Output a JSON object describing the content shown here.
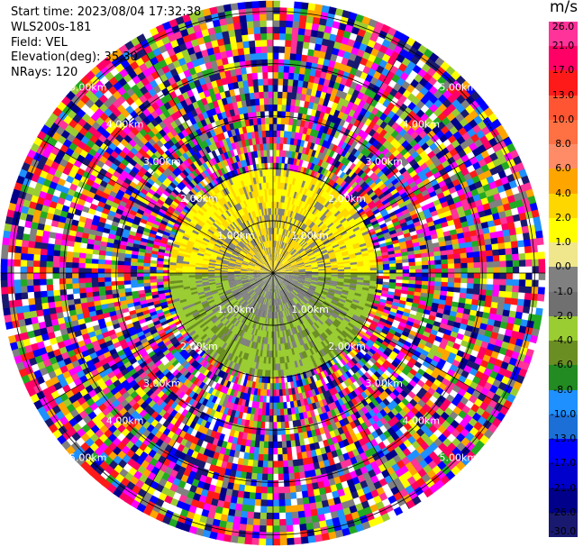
{
  "info": {
    "start_time": "Start time: 2023/08/04 17:32:38",
    "instrument": "WLS200s-181",
    "field": "Field: VEL",
    "elevation": "Elevation(deg): 35.30",
    "nrays": "NRays: 120"
  },
  "chart_data": {
    "type": "heatmap",
    "subtype": "polar-ppi",
    "field": "VEL",
    "unit": "m/s",
    "nrays": 120,
    "elevation_deg": 35.3,
    "range_rings_km": [
      "1.00km",
      "2.00km",
      "3.00km",
      "4.00km",
      "5.00km"
    ],
    "max_range_km": 5.2,
    "colorbar": {
      "title": "m/s",
      "levels": [
        "26.0",
        "21.0",
        "17.0",
        "13.0",
        "10.0",
        "8.0",
        "6.0",
        "4.0",
        "2.0",
        "1.0",
        "0.0",
        "-1.0",
        "-2.0",
        "-4.0",
        "-6.0",
        "-8.0",
        "-10.0",
        "-13.0",
        "-17.0",
        "-21.0",
        "-26.0",
        "-30.0"
      ],
      "colors": [
        "#ff3399",
        "#ff0066",
        "#ff1a1a",
        "#ff5533",
        "#ff7043",
        "#ff8c66",
        "#ffa500",
        "#ffd700",
        "#ffff00",
        "#f0e68c",
        "#808080",
        "#707070",
        "#9acd32",
        "#6b8e23",
        "#228b22",
        "#1e90ff",
        "#1c6fd6",
        "#0000ff",
        "#0000cd",
        "#00008b",
        "#191970"
      ]
    },
    "regions": [
      {
        "range_km": [
          0,
          1.55
        ],
        "azimuth_deg": [
          -90,
          90
        ],
        "values": "1.0 to 4.0",
        "color_key": "yellow"
      },
      {
        "range_km": [
          0,
          1.55
        ],
        "azimuth_deg": [
          90,
          270
        ],
        "values": "-2.0 to 0.0",
        "color_key": "gray-green"
      },
      {
        "range_km": [
          1.55,
          5.2
        ],
        "azimuth_deg": [
          0,
          360
        ],
        "values": "noise (random, full range)",
        "color_key": "mixed"
      }
    ],
    "colors": {
      "yellow": [
        "#ffff00",
        "#ffd700",
        "#f0e68c"
      ],
      "gray": [
        "#808080",
        "#707070"
      ],
      "green": [
        "#9acd32",
        "#6b8e23"
      ],
      "noise": [
        "#ff00ff",
        "#ff3399",
        "#ff0066",
        "#ffff00",
        "#0000ff",
        "#00008b",
        "#191970",
        "#ffffff",
        "#22aa22",
        "#1e90ff",
        "#808080",
        "#ffa500",
        "#9acd32",
        "#ff1a1a"
      ]
    }
  }
}
